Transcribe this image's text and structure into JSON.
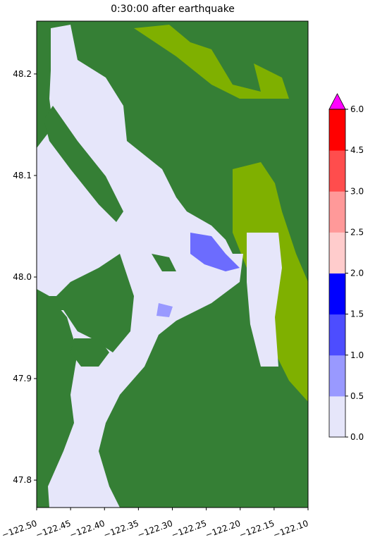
{
  "chart_data": {
    "type": "raster-map",
    "title": "0:30:00 after earthquake",
    "xlim": [
      -122.5,
      -122.1
    ],
    "ylim": [
      47.773,
      48.252
    ],
    "xticks": [
      {
        "value": -122.5,
        "label": "−122.50"
      },
      {
        "value": -122.45,
        "label": "−122.45"
      },
      {
        "value": -122.4,
        "label": "−122.40"
      },
      {
        "value": -122.35,
        "label": "−122.35"
      },
      {
        "value": -122.3,
        "label": "−122.30"
      },
      {
        "value": -122.25,
        "label": "−122.25"
      },
      {
        "value": -122.2,
        "label": "−122.20"
      },
      {
        "value": -122.15,
        "label": "−122.15"
      },
      {
        "value": -122.1,
        "label": "−122.10"
      }
    ],
    "yticks": [
      47.8,
      47.9,
      {
        "value": 48.0,
        "label": "48.0"
      },
      48.1,
      48.2
    ],
    "colorbar": {
      "ticks": [
        {
          "value": 0,
          "label": "0.0"
        },
        {
          "value": 0.5,
          "label": "0.5"
        },
        {
          "value": 1,
          "label": "1.0"
        },
        {
          "value": 1.5,
          "label": "1.5"
        },
        {
          "value": 2,
          "label": "2.0"
        },
        {
          "value": 2.5,
          "label": "2.5"
        },
        {
          "value": 3,
          "label": "3.0"
        },
        {
          "value": 4.5,
          "label": "4.5"
        },
        {
          "value": 6,
          "label": "6.0"
        }
      ],
      "colors": [
        "#e6e6fa",
        "#9999ff",
        "#4d4dff",
        "#0000ff",
        "#ffcccc",
        "#ff9999",
        "#ff4d4d",
        "#ff0000"
      ],
      "extend_color": "#ff00ff"
    }
  }
}
